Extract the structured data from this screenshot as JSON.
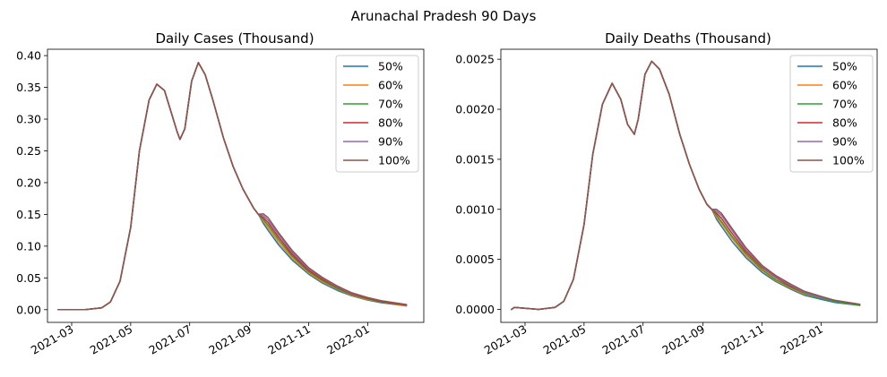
{
  "figure": {
    "suptitle": "Arunachal Pradesh 90 Days"
  },
  "chart_data": [
    {
      "type": "line",
      "title": "Daily Cases (Thousand)",
      "xlabel": "",
      "ylabel": "",
      "x_axis": "date",
      "xlim": [
        "2021-02-04",
        "2022-02-28"
      ],
      "ylim": [
        -0.02,
        0.41
      ],
      "xticks": [
        "2021-03",
        "2021-05",
        "2021-07",
        "2021-09",
        "2021-11",
        "2022-01"
      ],
      "yticks": [
        0.0,
        0.05,
        0.1,
        0.15,
        0.2,
        0.25,
        0.3,
        0.35,
        0.4
      ],
      "ytick_labels": [
        "0.00",
        "0.05",
        "0.10",
        "0.15",
        "0.20",
        "0.25",
        "0.30",
        "0.35",
        "0.40"
      ],
      "grid": false,
      "legend_position": "top-right",
      "base_curve": {
        "x": [
          "2021-02-15",
          "2021-03-15",
          "2021-04-01",
          "2021-04-10",
          "2021-04-20",
          "2021-05-01",
          "2021-05-10",
          "2021-05-20",
          "2021-05-28",
          "2021-06-05",
          "2021-06-12",
          "2021-06-18",
          "2021-06-21",
          "2021-06-26",
          "2021-07-03",
          "2021-07-10",
          "2021-07-17",
          "2021-07-25",
          "2021-08-05",
          "2021-08-15",
          "2021-08-25",
          "2021-09-05",
          "2021-09-10"
        ],
        "y": [
          0.0,
          0.0,
          0.003,
          0.012,
          0.045,
          0.13,
          0.25,
          0.33,
          0.355,
          0.345,
          0.31,
          0.28,
          0.268,
          0.285,
          0.36,
          0.389,
          0.37,
          0.33,
          0.27,
          0.225,
          0.19,
          0.16,
          0.15
        ]
      },
      "tail_x": [
        "2021-09-15",
        "2021-09-20",
        "2021-10-01",
        "2021-10-15",
        "2021-11-01",
        "2021-11-15",
        "2021-12-01",
        "2021-12-15",
        "2022-01-01",
        "2022-01-15",
        "2022-02-10"
      ],
      "series": [
        {
          "name": "50%",
          "color": "#1f77b4",
          "tail": [
            0.136,
            0.125,
            0.102,
            0.078,
            0.056,
            0.042,
            0.03,
            0.022,
            0.015,
            0.011,
            0.006
          ]
        },
        {
          "name": "60%",
          "color": "#ff7f0e",
          "tail": [
            0.139,
            0.129,
            0.106,
            0.081,
            0.058,
            0.044,
            0.032,
            0.023,
            0.016,
            0.012,
            0.006
          ]
        },
        {
          "name": "70%",
          "color": "#2ca02c",
          "tail": [
            0.142,
            0.133,
            0.11,
            0.084,
            0.06,
            0.046,
            0.033,
            0.024,
            0.017,
            0.012,
            0.007
          ]
        },
        {
          "name": "80%",
          "color": "#d62728",
          "tail": [
            0.145,
            0.137,
            0.114,
            0.087,
            0.062,
            0.048,
            0.035,
            0.025,
            0.018,
            0.013,
            0.007
          ]
        },
        {
          "name": "90%",
          "color": "#9467bd",
          "tail": [
            0.148,
            0.141,
            0.118,
            0.09,
            0.064,
            0.05,
            0.036,
            0.026,
            0.019,
            0.014,
            0.008
          ]
        },
        {
          "name": "100%",
          "color": "#8c564b",
          "tail": [
            0.151,
            0.145,
            0.121,
            0.093,
            0.066,
            0.051,
            0.037,
            0.027,
            0.019,
            0.014,
            0.008
          ]
        }
      ]
    },
    {
      "type": "line",
      "title": "Daily Deaths (Thousand)",
      "xlabel": "",
      "ylabel": "",
      "x_axis": "date",
      "xlim": [
        "2021-02-04",
        "2022-02-28"
      ],
      "ylim": [
        -0.00013,
        0.0026
      ],
      "xticks": [
        "2021-03",
        "2021-05",
        "2021-07",
        "2021-09",
        "2021-11",
        "2022-01"
      ],
      "yticks": [
        0.0,
        0.0005,
        0.001,
        0.0015,
        0.002,
        0.0025
      ],
      "ytick_labels": [
        "0.0000",
        "0.0005",
        "0.0010",
        "0.0015",
        "0.0020",
        "0.0025"
      ],
      "grid": false,
      "legend_position": "top-right",
      "base_curve": {
        "x": [
          "2021-02-15",
          "2021-02-18",
          "2021-03-15",
          "2021-04-01",
          "2021-04-10",
          "2021-04-20",
          "2021-05-01",
          "2021-05-10",
          "2021-05-20",
          "2021-05-30",
          "2021-06-08",
          "2021-06-15",
          "2021-06-22",
          "2021-06-26",
          "2021-07-03",
          "2021-07-10",
          "2021-07-18",
          "2021-07-28",
          "2021-08-08",
          "2021-08-18",
          "2021-08-28",
          "2021-09-05",
          "2021-09-10"
        ],
        "y": [
          0.0,
          2e-05,
          0.0,
          2e-05,
          8e-05,
          0.0003,
          0.00085,
          0.00155,
          0.00205,
          0.00226,
          0.0021,
          0.00185,
          0.00175,
          0.0019,
          0.00235,
          0.00248,
          0.0024,
          0.00215,
          0.00175,
          0.00145,
          0.0012,
          0.00105,
          0.001
        ]
      },
      "tail_x": [
        "2021-09-15",
        "2021-09-20",
        "2021-10-01",
        "2021-10-15",
        "2021-11-01",
        "2021-11-15",
        "2021-12-01",
        "2021-12-15",
        "2022-01-01",
        "2022-01-15",
        "2022-02-10"
      ],
      "series": [
        {
          "name": "50%",
          "color": "#1f77b4",
          "tail": [
            0.0009,
            0.00083,
            0.00068,
            0.00052,
            0.00037,
            0.00028,
            0.0002,
            0.00014,
            0.0001,
            7e-05,
            4e-05
          ]
        },
        {
          "name": "60%",
          "color": "#ff7f0e",
          "tail": [
            0.00092,
            0.00086,
            0.00071,
            0.00054,
            0.00039,
            0.00029,
            0.00021,
            0.00015,
            0.00011,
            8e-05,
            4e-05
          ]
        },
        {
          "name": "70%",
          "color": "#2ca02c",
          "tail": [
            0.00094,
            0.00088,
            0.00073,
            0.00056,
            0.0004,
            0.0003,
            0.00022,
            0.00016,
            0.00011,
            8e-05,
            4e-05
          ]
        },
        {
          "name": "80%",
          "color": "#d62728",
          "tail": [
            0.00096,
            0.00091,
            0.00076,
            0.00058,
            0.00042,
            0.00032,
            0.00023,
            0.00017,
            0.00012,
            9e-05,
            5e-05
          ]
        },
        {
          "name": "90%",
          "color": "#9467bd",
          "tail": [
            0.00098,
            0.00094,
            0.00079,
            0.0006,
            0.00043,
            0.00033,
            0.00024,
            0.00017,
            0.00012,
            9e-05,
            5e-05
          ]
        },
        {
          "name": "100%",
          "color": "#8c564b",
          "tail": [
            0.001,
            0.00096,
            0.00081,
            0.00062,
            0.00044,
            0.00034,
            0.00025,
            0.00018,
            0.00013,
            9e-05,
            5e-05
          ]
        }
      ]
    }
  ]
}
